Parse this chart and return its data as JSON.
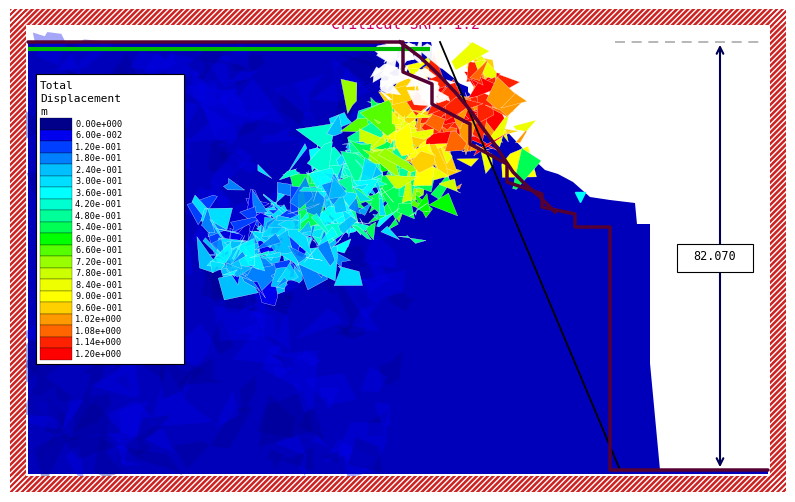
{
  "title": "Critical SRF: 1.2",
  "title_color": "#CC0066",
  "bg_color": "#ffffff",
  "colorbar_labels": [
    "0.00e+000",
    "6.00e-002",
    "1.20e-001",
    "1.80e-001",
    "2.40e-001",
    "3.00e-001",
    "3.60e-001",
    "4.20e-001",
    "4.80e-001",
    "5.40e-001",
    "6.00e-001",
    "6.60e-001",
    "7.20e-001",
    "7.80e-001",
    "8.40e-001",
    "9.00e-001",
    "9.60e-001",
    "1.02e+000",
    "1.08e+000",
    "1.14e+000",
    "1.20e+000"
  ],
  "colorbar_colors": [
    "#00008B",
    "#0000EE",
    "#003FFF",
    "#007FFF",
    "#00BFFF",
    "#00DFFF",
    "#00FFFF",
    "#00FFD0",
    "#00FF99",
    "#00FF55",
    "#00FF00",
    "#55FF00",
    "#99FF00",
    "#CCFF00",
    "#EEFF00",
    "#FFFF00",
    "#FFD000",
    "#FF9900",
    "#FF6600",
    "#FF2200",
    "#FF0000"
  ],
  "dim_label": "82.070",
  "border_red": "#CC2222",
  "slope_outline_color": "#550033",
  "green_line_color": "#00BB00",
  "dashed_line_color": "#AAAAAA",
  "arrow_color": "#000055",
  "soil_blue": "#0000BB",
  "soil_blue_dark": "#000088"
}
